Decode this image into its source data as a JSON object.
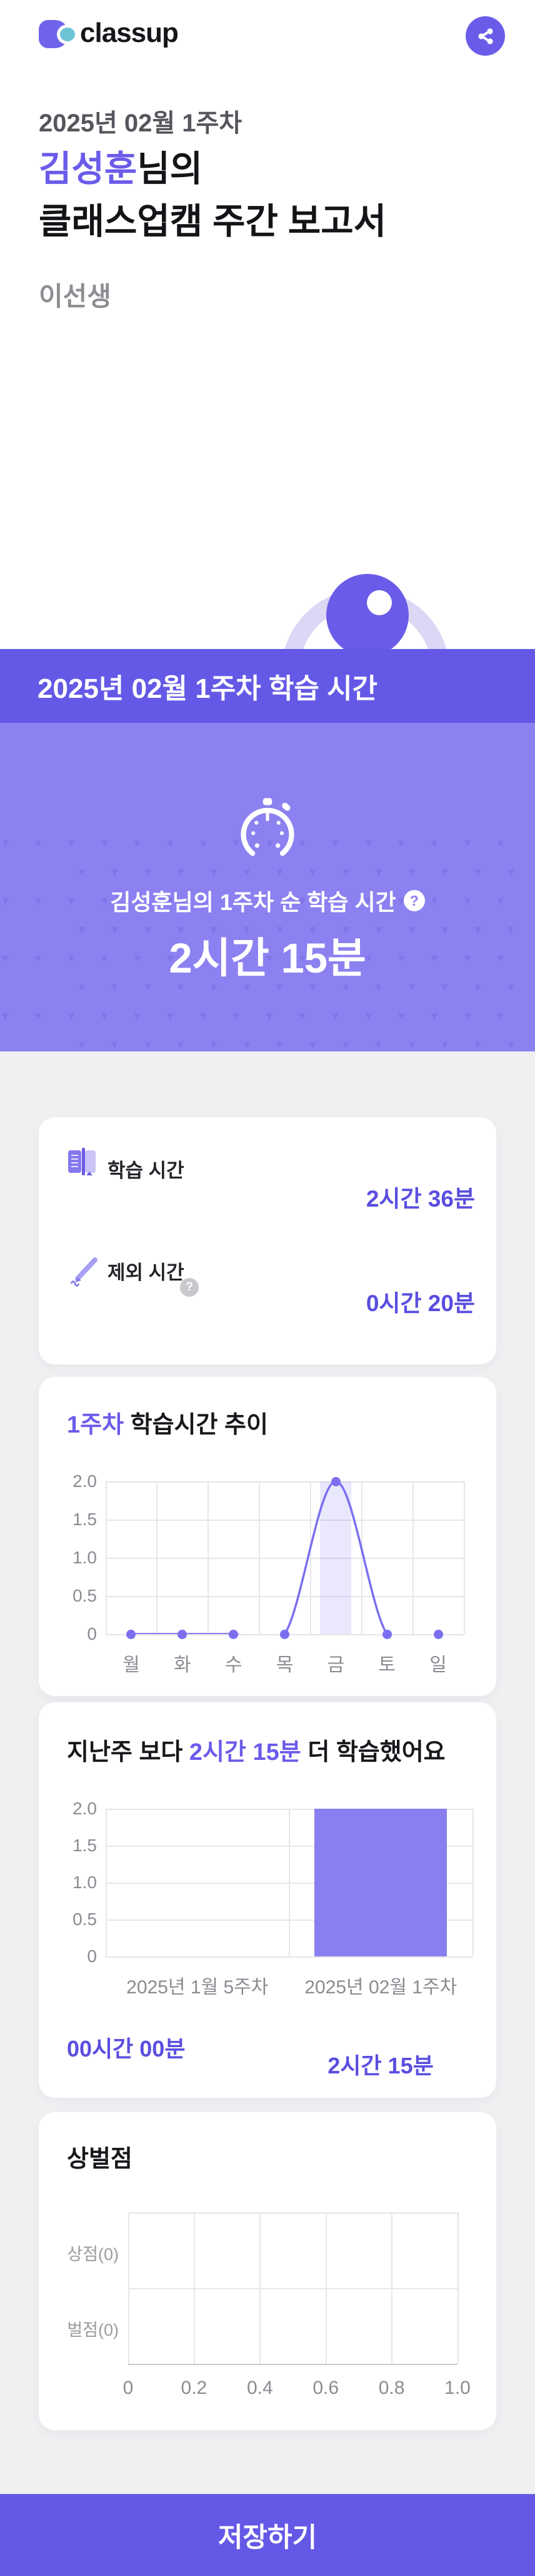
{
  "header": {
    "logo_text": "classup"
  },
  "intro": {
    "week_label": "2025년 02월 1주차",
    "student_name": "김성훈",
    "name_suffix": "님의",
    "title_line2": "클래스업캠 주간 보고서",
    "teacher_name": "이선생"
  },
  "banner": {
    "title": "2025년 02월 1주차 학습 시간"
  },
  "hero": {
    "subtitle": "김성훈님의 1주차 순 학습 시간",
    "help_glyph": "?",
    "total_time": "2시간 15분"
  },
  "summary": {
    "rows": [
      {
        "icon": "book-icon",
        "label": "학습 시간",
        "value": "2시간 36분"
      },
      {
        "icon": "pencil-icon",
        "label": "제외 시간",
        "value": "0시간 20분"
      }
    ],
    "help_glyph": "?"
  },
  "trend": {
    "title_highlight": "1주차",
    "title_rest": " 학습시간 추이"
  },
  "compare": {
    "title_prefix": "지난주 보다 ",
    "title_highlight": "2시간 15분",
    "title_suffix": " 더 학습했어요"
  },
  "points": {
    "title": "상벌점"
  },
  "footer": {
    "save_label": "저장하기"
  },
  "colors": {
    "accent": "#6b5bea",
    "banner": "#6459e6",
    "hero_bg": "#8c81f0",
    "value_text": "#5a4ee0",
    "line": "#7b6ff0",
    "bar": "#8a7ff0",
    "lavender": "#dbd7f5"
  },
  "chart_data": [
    {
      "type": "line",
      "title": "1주차 학습시간 추이",
      "categories": [
        "월",
        "화",
        "수",
        "목",
        "금",
        "토",
        "일"
      ],
      "values": [
        0,
        0,
        0,
        0,
        2,
        0,
        0
      ],
      "yticks": [
        0,
        0.5,
        1.0,
        1.5,
        2.0
      ],
      "ylim": [
        0,
        2
      ],
      "xlabel": "",
      "ylabel": "",
      "grid": true,
      "legend": "none",
      "highlight_category": "금"
    },
    {
      "type": "bar",
      "title": "지난주 보다 2시간 15분 더 학습했어요",
      "categories": [
        "2025년 1월 5주차",
        "2025년 02월 1주차"
      ],
      "values": [
        0,
        2
      ],
      "value_labels": [
        "00시간 00분",
        "2시간 15분"
      ],
      "yticks": [
        0,
        0.5,
        1.0,
        1.5,
        2.0
      ],
      "ylim": [
        0,
        2
      ],
      "grid": true,
      "legend": "none"
    },
    {
      "type": "hbar",
      "title": "상벌점",
      "categories": [
        "상점(0)",
        "벌점(0)"
      ],
      "values": [
        0,
        0
      ],
      "xticks": [
        0,
        0.2,
        0.4,
        0.6,
        0.8,
        1.0
      ],
      "xlim": [
        0,
        1
      ],
      "grid": true,
      "legend": "none"
    }
  ]
}
